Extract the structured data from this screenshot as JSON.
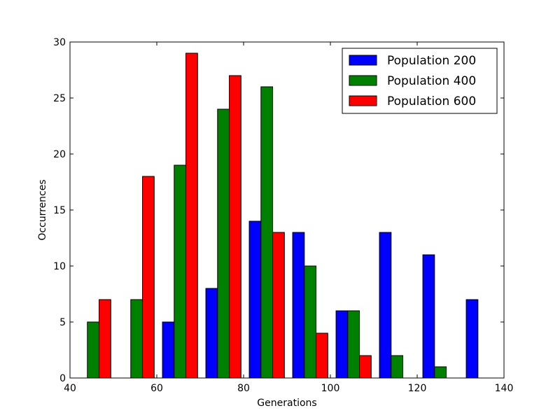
{
  "chart_data": {
    "type": "bar",
    "xlabel": "Generations",
    "ylabel": "Occurrences",
    "xlim": [
      40,
      140
    ],
    "ylim": [
      0,
      30
    ],
    "xticks": [
      40,
      60,
      80,
      100,
      120,
      140
    ],
    "yticks": [
      0,
      5,
      10,
      15,
      20,
      25,
      30
    ],
    "grid": false,
    "legend_position": "top-right",
    "series": [
      {
        "name": "Population 200",
        "color": "#0000ff",
        "bars": [
          {
            "x": 61.3,
            "width": 2.7,
            "value": 5
          },
          {
            "x": 71.3,
            "width": 2.7,
            "value": 8
          },
          {
            "x": 81.3,
            "width": 2.7,
            "value": 14
          },
          {
            "x": 91.3,
            "width": 2.7,
            "value": 13
          },
          {
            "x": 101.3,
            "width": 2.7,
            "value": 6
          },
          {
            "x": 111.3,
            "width": 2.7,
            "value": 13
          },
          {
            "x": 121.3,
            "width": 2.7,
            "value": 11
          },
          {
            "x": 131.3,
            "width": 2.7,
            "value": 7
          }
        ]
      },
      {
        "name": "Population 400",
        "color": "#008000",
        "bars": [
          {
            "x": 44.0,
            "width": 2.7,
            "value": 5
          },
          {
            "x": 54.0,
            "width": 2.7,
            "value": 7
          },
          {
            "x": 64.0,
            "width": 2.7,
            "value": 19
          },
          {
            "x": 74.0,
            "width": 2.7,
            "value": 24
          },
          {
            "x": 84.0,
            "width": 2.7,
            "value": 26
          },
          {
            "x": 94.0,
            "width": 2.7,
            "value": 10
          },
          {
            "x": 104.0,
            "width": 2.7,
            "value": 6
          },
          {
            "x": 114.0,
            "width": 2.7,
            "value": 2
          },
          {
            "x": 124.0,
            "width": 2.7,
            "value": 1
          }
        ]
      },
      {
        "name": "Population 600",
        "color": "#ff0000",
        "bars": [
          {
            "x": 46.7,
            "width": 2.7,
            "value": 7
          },
          {
            "x": 56.7,
            "width": 2.7,
            "value": 18
          },
          {
            "x": 66.7,
            "width": 2.7,
            "value": 29
          },
          {
            "x": 76.7,
            "width": 2.7,
            "value": 27
          },
          {
            "x": 86.7,
            "width": 2.7,
            "value": 13
          },
          {
            "x": 96.7,
            "width": 2.7,
            "value": 4
          },
          {
            "x": 106.7,
            "width": 2.7,
            "value": 2
          }
        ]
      }
    ]
  }
}
